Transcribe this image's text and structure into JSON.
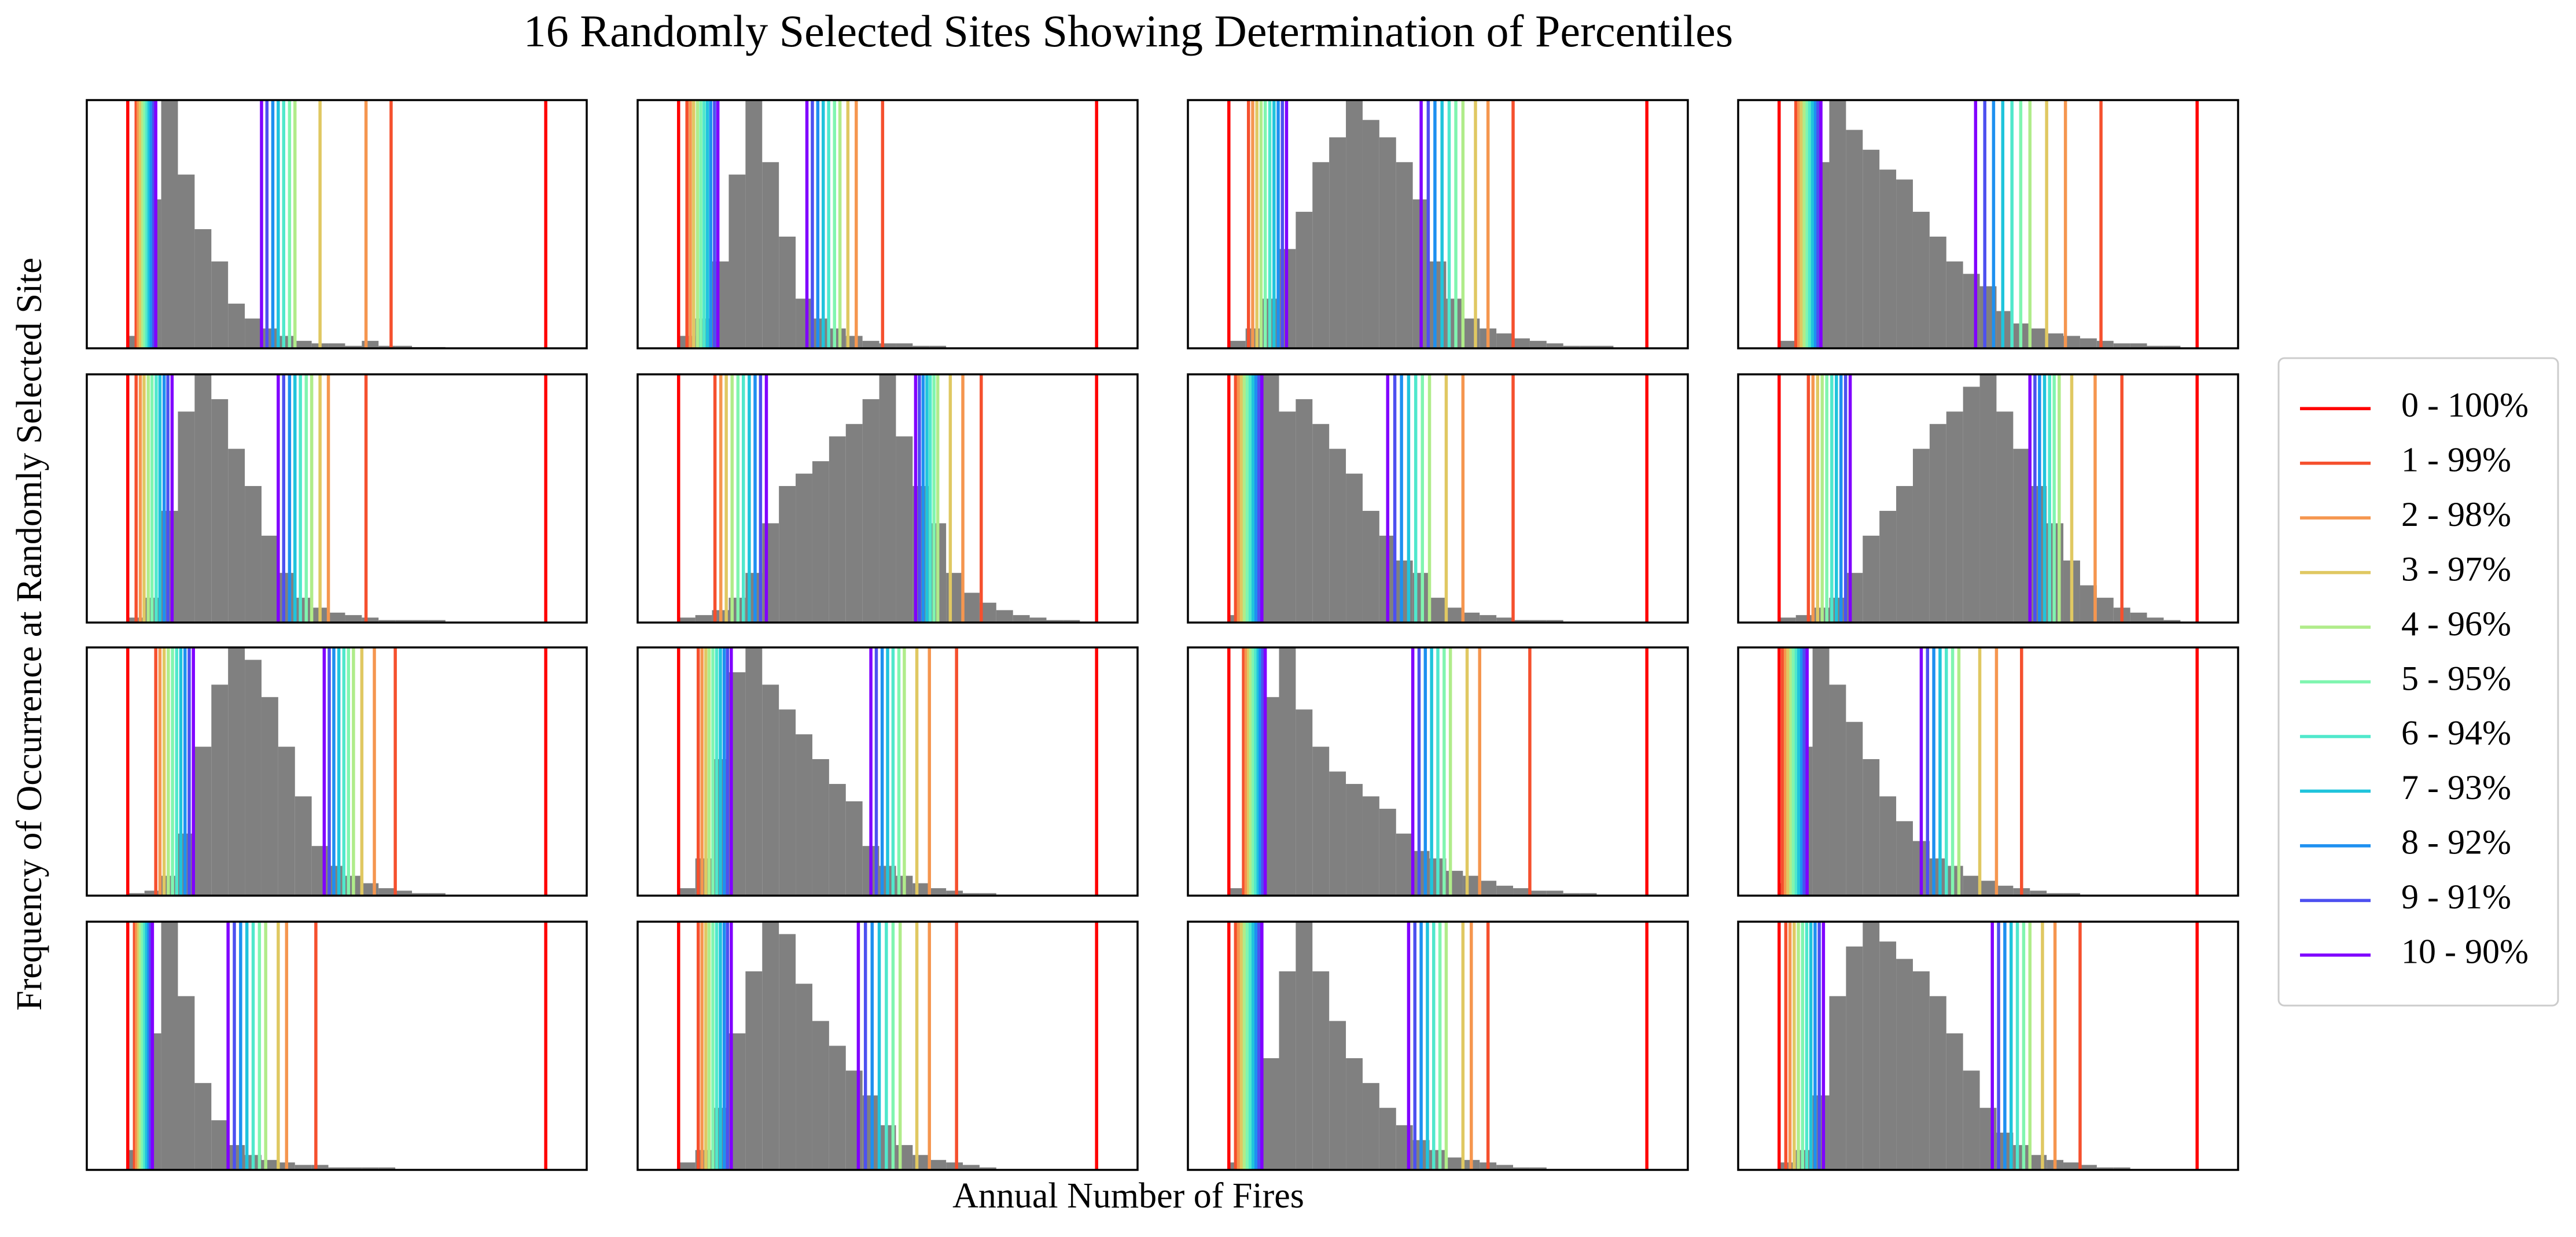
{
  "chart_data": {
    "type": "histogram",
    "title": "16 Randomly Selected Sites Showing Determination of Percentiles",
    "xlabel": "Annual Number of Fires",
    "ylabel": "Frequency of Occurrence at Randomly Selected Site",
    "color": "#808080",
    "legend": "right",
    "xlim": [
      -9.8,
      109.8
    ],
    "ylim": [
      0,
      100
    ],
    "bins": [
      0,
      4,
      8,
      12,
      16,
      20,
      24,
      28,
      32,
      36,
      40,
      44,
      48,
      52,
      56,
      60,
      64,
      68,
      72,
      76,
      80,
      84,
      88,
      92,
      96,
      100
    ],
    "series": [
      {
        "name": "0 - 100%",
        "color": "#ff0000"
      },
      {
        "name": "1 - 99%",
        "color": "#f5502e"
      },
      {
        "name": "2 - 98%",
        "color": "#f5964f"
      },
      {
        "name": "3 - 97%",
        "color": "#e0c862"
      },
      {
        "name": "4 - 96%",
        "color": "#b0ec8a"
      },
      {
        "name": "5 - 95%",
        "color": "#80f5b0"
      },
      {
        "name": "6 - 94%",
        "color": "#50e8cc"
      },
      {
        "name": "7 - 93%",
        "color": "#20c4dc"
      },
      {
        "name": "8 - 92%",
        "color": "#1e90f0"
      },
      {
        "name": "9 - 91%",
        "color": "#4d50f0"
      },
      {
        "name": "10 - 90%",
        "color": "#8000ff"
      }
    ],
    "panels": [
      {
        "counts": [
          5,
          60,
          100,
          70,
          48,
          35,
          18,
          12,
          8,
          5,
          3,
          2,
          2,
          1,
          3,
          1,
          1,
          0.5,
          0.5,
          0,
          0,
          0,
          0,
          0,
          0
        ],
        "lines": [
          [
            0,
            100
          ],
          [
            2,
            63
          ],
          [
            2.5,
            57
          ],
          [
            3,
            46
          ],
          [
            3.6,
            40
          ],
          [
            4.1,
            38.7
          ],
          [
            4.6,
            37.3
          ],
          [
            5.1,
            36
          ],
          [
            5.6,
            34.7
          ],
          [
            6.2,
            33.3
          ],
          [
            6.7,
            32
          ]
        ]
      },
      {
        "counts": [
          5,
          12,
          35,
          70,
          100,
          75,
          45,
          20,
          12,
          8,
          5,
          3,
          2,
          2,
          1,
          1,
          0,
          0,
          0,
          0,
          0,
          0,
          0,
          0,
          0
        ],
        "lines": [
          [
            0,
            100
          ],
          [
            2,
            48.8
          ],
          [
            2.8,
            42.5
          ],
          [
            3.6,
            40.5
          ],
          [
            4.5,
            38.6
          ],
          [
            5.3,
            37.3
          ],
          [
            6.1,
            35.9
          ],
          [
            6.9,
            34.6
          ],
          [
            7.7,
            33.3
          ],
          [
            8.6,
            32
          ],
          [
            9.4,
            30.7
          ]
        ]
      },
      {
        "counts": [
          3,
          8,
          20,
          40,
          55,
          75,
          85,
          100,
          92,
          85,
          75,
          60,
          35,
          20,
          12,
          8,
          6,
          4,
          3,
          2,
          1,
          1,
          1,
          0,
          0
        ],
        "lines": [
          [
            0,
            100
          ],
          [
            4.7,
            68
          ],
          [
            5.7,
            62
          ],
          [
            6.7,
            59
          ],
          [
            7.7,
            56
          ],
          [
            8.7,
            54.3
          ],
          [
            9.8,
            52.7
          ],
          [
            10.8,
            51
          ],
          [
            11.8,
            49.3
          ],
          [
            12.8,
            47.7
          ],
          [
            13.8,
            46
          ]
        ]
      },
      {
        "counts": [
          3,
          30,
          75,
          100,
          88,
          80,
          72,
          68,
          55,
          45,
          35,
          30,
          25,
          15,
          10,
          8,
          6,
          5,
          4,
          3,
          2,
          2,
          1,
          1,
          0
        ],
        "lines": [
          [
            0,
            100
          ],
          [
            4,
            77
          ],
          [
            4.7,
            68.5
          ],
          [
            5.3,
            64
          ],
          [
            6,
            60
          ],
          [
            6.7,
            57.8
          ],
          [
            7.3,
            55.7
          ],
          [
            8,
            53.5
          ],
          [
            8.7,
            51.3
          ],
          [
            9.3,
            49.2
          ],
          [
            10,
            47
          ]
        ]
      },
      {
        "counts": [
          2,
          10,
          45,
          85,
          100,
          90,
          70,
          55,
          35,
          20,
          10,
          6,
          4,
          3,
          2,
          1,
          1,
          1,
          1,
          0,
          0,
          0,
          0,
          0,
          0
        ],
        "lines": [
          [
            0,
            100
          ],
          [
            2,
            57
          ],
          [
            3,
            48
          ],
          [
            3.9,
            46
          ],
          [
            4.9,
            44
          ],
          [
            5.8,
            42.7
          ],
          [
            6.8,
            41.3
          ],
          [
            7.7,
            40
          ],
          [
            8.7,
            38.7
          ],
          [
            9.6,
            37.3
          ],
          [
            10.6,
            36
          ]
        ]
      },
      {
        "counts": [
          2,
          3,
          5,
          10,
          20,
          40,
          55,
          60,
          65,
          75,
          80,
          90,
          100,
          75,
          55,
          40,
          20,
          12,
          8,
          5,
          3,
          2,
          1,
          1,
          0
        ],
        "lines": [
          [
            0,
            100
          ],
          [
            8.7,
            72.4
          ],
          [
            10.1,
            68
          ],
          [
            11.4,
            65
          ],
          [
            12.8,
            62
          ],
          [
            14.2,
            61.1
          ],
          [
            15.5,
            60.2
          ],
          [
            16.9,
            59.4
          ],
          [
            18.3,
            58.5
          ],
          [
            19.6,
            57.6
          ],
          [
            21,
            56.7
          ]
        ]
      },
      {
        "counts": [
          3,
          40,
          100,
          85,
          90,
          80,
          70,
          60,
          45,
          35,
          25,
          20,
          10,
          6,
          4,
          3,
          2,
          1,
          1,
          1,
          0,
          0,
          0,
          0,
          0
        ],
        "lines": [
          [
            0,
            100
          ],
          [
            1.6,
            68
          ],
          [
            2.3,
            56
          ],
          [
            3,
            52
          ],
          [
            3.7,
            48
          ],
          [
            4.4,
            46.3
          ],
          [
            5.1,
            44.7
          ],
          [
            5.8,
            43
          ],
          [
            6.5,
            41.3
          ],
          [
            7.2,
            39.7
          ],
          [
            7.9,
            38
          ]
        ]
      },
      {
        "counts": [
          2,
          3,
          6,
          10,
          20,
          35,
          45,
          55,
          70,
          80,
          85,
          95,
          100,
          85,
          70,
          55,
          40,
          25,
          15,
          10,
          6,
          4,
          2,
          1,
          0
        ],
        "lines": [
          [
            0,
            100
          ],
          [
            7,
            82
          ],
          [
            8.1,
            75.6
          ],
          [
            9.2,
            70
          ],
          [
            10.3,
            67
          ],
          [
            11.4,
            65.8
          ],
          [
            12.6,
            64.7
          ],
          [
            13.7,
            63.5
          ],
          [
            14.8,
            62.3
          ],
          [
            15.9,
            61.2
          ],
          [
            17,
            60
          ]
        ]
      },
      {
        "counts": [
          1,
          2,
          8,
          25,
          60,
          85,
          100,
          95,
          80,
          60,
          40,
          20,
          12,
          8,
          5,
          3,
          2,
          1,
          1,
          0,
          0,
          0,
          0,
          0,
          0
        ],
        "lines": [
          [
            0,
            100
          ],
          [
            6.7,
            64
          ],
          [
            7.7,
            59
          ],
          [
            8.7,
            56
          ],
          [
            9.7,
            54
          ],
          [
            10.7,
            52.8
          ],
          [
            11.7,
            51.7
          ],
          [
            12.7,
            50.5
          ],
          [
            13.7,
            49.3
          ],
          [
            14.7,
            48.2
          ],
          [
            15.7,
            47
          ]
        ]
      },
      {
        "counts": [
          3,
          15,
          55,
          90,
          100,
          85,
          75,
          65,
          55,
          45,
          38,
          20,
          12,
          8,
          5,
          3,
          2,
          1,
          1,
          0,
          0,
          0,
          0,
          0,
          0
        ],
        "lines": [
          [
            0,
            100
          ],
          [
            4.7,
            66.5
          ],
          [
            5.6,
            60
          ],
          [
            6.5,
            57
          ],
          [
            7.3,
            54
          ],
          [
            8.2,
            52.7
          ],
          [
            9.1,
            51.3
          ],
          [
            10,
            50
          ],
          [
            10.9,
            48.7
          ],
          [
            11.7,
            47.3
          ],
          [
            12.6,
            46
          ]
        ]
      },
      {
        "counts": [
          3,
          25,
          80,
          100,
          75,
          60,
          50,
          45,
          40,
          35,
          25,
          18,
          15,
          10,
          8,
          6,
          4,
          3,
          2,
          2,
          1,
          1,
          0,
          0,
          0
        ],
        "lines": [
          [
            0,
            100
          ],
          [
            3.5,
            72
          ],
          [
            4.1,
            60
          ],
          [
            4.7,
            57
          ],
          [
            5.2,
            53
          ],
          [
            5.8,
            51.5
          ],
          [
            6.4,
            50
          ],
          [
            7,
            48.5
          ],
          [
            7.5,
            47
          ],
          [
            8.1,
            45.5
          ],
          [
            8.7,
            44
          ]
        ]
      },
      {
        "counts": [
          5,
          60,
          100,
          85,
          70,
          55,
          40,
          30,
          22,
          15,
          12,
          8,
          6,
          4,
          3,
          2,
          1,
          1,
          0,
          0,
          0,
          0,
          0,
          0,
          0
        ],
        "lines": [
          [
            0,
            100
          ],
          [
            0.8,
            58
          ],
          [
            1.5,
            52
          ],
          [
            2.1,
            48
          ],
          [
            2.8,
            43
          ],
          [
            3.4,
            41.5
          ],
          [
            4.1,
            40
          ],
          [
            4.7,
            38.5
          ],
          [
            5.4,
            37
          ],
          [
            6,
            35.5
          ],
          [
            6.7,
            34
          ]
        ]
      },
      {
        "counts": [
          8,
          55,
          100,
          70,
          35,
          20,
          10,
          6,
          4,
          3,
          2,
          2,
          1,
          1,
          1,
          1,
          0,
          0,
          0,
          0,
          0,
          0,
          0,
          0,
          0
        ],
        "lines": [
          [
            0,
            100
          ],
          [
            1.6,
            45
          ],
          [
            2.1,
            38
          ],
          [
            2.6,
            36
          ],
          [
            3,
            33
          ],
          [
            3.5,
            31.5
          ],
          [
            4,
            30
          ],
          [
            4.5,
            28.5
          ],
          [
            5,
            27
          ],
          [
            5.4,
            25.5
          ],
          [
            5.9,
            24
          ]
        ]
      },
      {
        "counts": [
          3,
          8,
          25,
          55,
          80,
          100,
          95,
          75,
          60,
          50,
          40,
          30,
          18,
          10,
          6,
          4,
          3,
          2,
          1,
          0,
          0,
          0,
          0,
          0,
          0
        ],
        "lines": [
          [
            0,
            100
          ],
          [
            4.7,
            66.5
          ],
          [
            5.6,
            60
          ],
          [
            6.5,
            57
          ],
          [
            7.3,
            53
          ],
          [
            8.2,
            51.3
          ],
          [
            9.1,
            49.7
          ],
          [
            10,
            48
          ],
          [
            10.9,
            46.3
          ],
          [
            11.7,
            44.7
          ],
          [
            12.6,
            43
          ]
        ]
      },
      {
        "counts": [
          3,
          15,
          45,
          80,
          100,
          80,
          60,
          45,
          35,
          25,
          18,
          12,
          8,
          5,
          4,
          3,
          2,
          1,
          1,
          0,
          0,
          0,
          0,
          0,
          0
        ],
        "lines": [
          [
            0,
            100
          ],
          [
            1.6,
            62
          ],
          [
            2.3,
            58
          ],
          [
            3,
            56
          ],
          [
            3.7,
            52
          ],
          [
            4.4,
            50.5
          ],
          [
            5.1,
            49
          ],
          [
            5.8,
            47.5
          ],
          [
            6.5,
            46
          ],
          [
            7.2,
            44.5
          ],
          [
            7.9,
            43
          ]
        ]
      },
      {
        "counts": [
          3,
          8,
          30,
          70,
          90,
          100,
          92,
          85,
          80,
          70,
          55,
          40,
          25,
          15,
          10,
          6,
          4,
          3,
          2,
          1,
          1,
          0,
          0,
          0,
          0
        ],
        "lines": [
          [
            0,
            100
          ],
          [
            1.6,
            72
          ],
          [
            2.6,
            66
          ],
          [
            3.6,
            63
          ],
          [
            4.6,
            60
          ],
          [
            5.6,
            58.5
          ],
          [
            6.6,
            57
          ],
          [
            7.6,
            55.5
          ],
          [
            8.6,
            54
          ],
          [
            9.6,
            52.5
          ],
          [
            10.6,
            51
          ]
        ]
      }
    ]
  }
}
